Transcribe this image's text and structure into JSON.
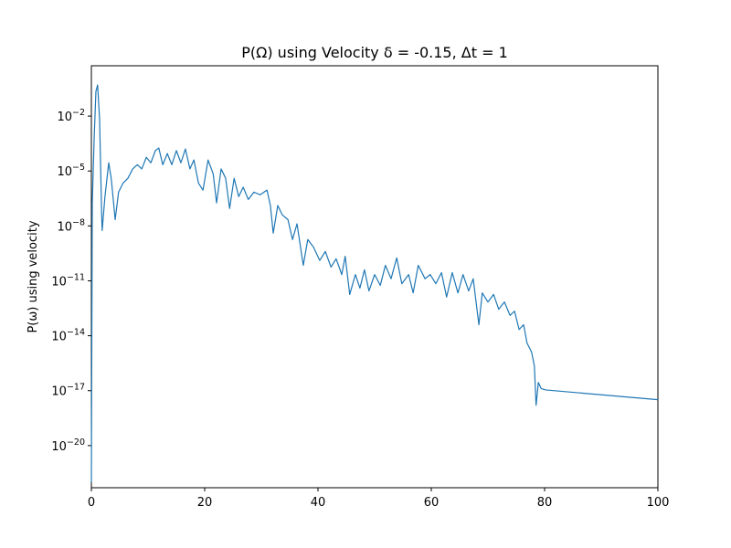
{
  "chart_data": {
    "type": "line",
    "title": "P(Ω) using Velocity δ = -0.15, Δt = 1",
    "y_label": "P(ω) using velocity",
    "log_y": true,
    "xlim": [
      0,
      100
    ],
    "xticks": [
      0,
      20,
      40,
      60,
      80,
      100
    ],
    "ylim": [
      5e-23,
      5.6
    ],
    "yticks": [
      {
        "value": 0.01,
        "label": "10−2"
      },
      {
        "value": 1e-05,
        "label": "10−5"
      },
      {
        "value": 1e-08,
        "label": "10−8"
      },
      {
        "value": 1e-11,
        "label": "10−11"
      },
      {
        "value": 1e-14,
        "label": "10−14"
      },
      {
        "value": 1e-17,
        "label": "10−17"
      },
      {
        "value": 1e-20,
        "label": "10−20"
      }
    ],
    "color": "#1f77b4",
    "x": [
      0,
      0.16,
      0.5,
      0.8,
      1.1,
      1.45,
      1.8,
      1.9,
      2.4,
      3.06,
      3.5,
      4.2,
      4.8,
      5.6,
      6.45,
      7.3,
      8.1,
      8.9,
      9.7,
      10.5,
      11.3,
      11.9,
      12.6,
      13.4,
      14.2,
      15.0,
      15.8,
      16.6,
      17.4,
      18.1,
      18.9,
      19.7,
      20.6,
      21.5,
      22.1,
      22.9,
      23.7,
      24.4,
      25.2,
      26.0,
      26.8,
      27.7,
      28.7,
      29.8,
      31.0,
      31.6,
      32.1,
      32.9,
      33.7,
      34.7,
      35.5,
      36.3,
      37.4,
      38.2,
      39.2,
      40.3,
      41.3,
      42.3,
      43.2,
      44.2,
      44.8,
      45.6,
      46.6,
      47.4,
      48.2,
      49.0,
      50.0,
      51.0,
      51.9,
      52.9,
      53.9,
      54.8,
      56.0,
      56.8,
      57.7,
      58.9,
      59.8,
      60.8,
      61.8,
      62.7,
      63.7,
      64.7,
      65.6,
      66.6,
      67.4,
      68.4,
      69.0,
      70.0,
      71.0,
      71.9,
      72.9,
      73.9,
      74.7,
      75.5,
      76.3,
      76.9,
      77.7,
      78.2,
      78.5,
      78.9,
      79.4,
      80.2,
      100
    ],
    "values": [
      1e-22,
      1.8e-07,
      0.0007,
      0.22,
      0.5,
      0.007,
      7e-08,
      5.6e-09,
      4e-07,
      2.8e-05,
      4e-06,
      2.2e-08,
      7e-07,
      2.2e-06,
      4e-06,
      1.3e-05,
      2.2e-05,
      1.3e-05,
      5.6e-05,
      2.8e-05,
      0.00013,
      0.00018,
      2.2e-05,
      9e-05,
      2.2e-05,
      0.00013,
      2.8e-05,
      0.00016,
      1.3e-05,
      4e-05,
      2.2e-06,
      9e-07,
      4e-05,
      7e-06,
      1.8e-07,
      1.3e-05,
      4e-06,
      9e-08,
      4e-06,
      4e-07,
      1.3e-06,
      2.8e-07,
      7e-07,
      5e-07,
      9e-07,
      1.3e-07,
      4e-09,
      1.3e-07,
      4e-08,
      2.2e-08,
      1.8e-09,
      1.3e-08,
      7e-11,
      1.8e-09,
      7e-10,
      1.3e-10,
      4e-10,
      5.6e-11,
      1.6e-10,
      2.2e-11,
      2.2e-10,
      1.8e-12,
      2.2e-11,
      4e-12,
      4e-11,
      2.8e-12,
      2.2e-11,
      5.6e-12,
      7e-11,
      1.3e-11,
      1.8e-10,
      7e-12,
      2.2e-11,
      2.2e-12,
      7e-11,
      1.3e-11,
      2.2e-11,
      7e-12,
      2.8e-11,
      1.3e-12,
      2.8e-11,
      2.2e-12,
      2.2e-11,
      2.8e-12,
      1.3e-11,
      4e-14,
      2.2e-12,
      7e-13,
      1.8e-12,
      2.8e-13,
      7e-13,
      1.3e-13,
      2.2e-13,
      2.2e-14,
      4e-14,
      4e-15,
      1.3e-15,
      2.2e-16,
      1.6e-18,
      2.8e-17,
      1.3e-17,
      1.1e-17,
      3.2e-18
    ]
  }
}
